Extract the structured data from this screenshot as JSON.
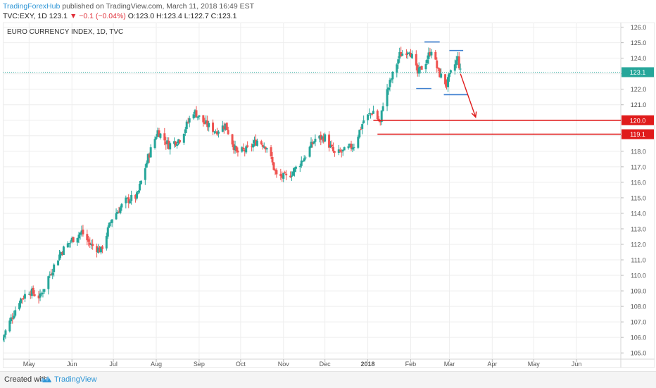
{
  "header": {
    "author": "TradingForexHub",
    "published": " published on TradingView.com, March 11, 2018 16:49 EST",
    "ohlc_prefix": "TVC:EXY, 1D 123.1 ",
    "ohlc_change": "▼ −0.1 (−0.04%)",
    "ohlc_values": " O:123.0 H:123.4 L:122.7 C:123.1"
  },
  "footer": {
    "created_with": "Created with",
    "brand": "TradingView"
  },
  "colors": {
    "up": "#26a69a",
    "down": "#ef5350",
    "grid": "#eeeeee",
    "lastLine": "#26a69a",
    "level": "#e01b1b",
    "pattern": "#3d7fcf"
  },
  "chart_data": {
    "type": "candlestick",
    "title": "EURO CURRENCY INDEX, 1D, TVC",
    "y_ticks": [
      "105.0",
      "106.0",
      "107.0",
      "108.0",
      "109.0",
      "110.0",
      "111.0",
      "112.0",
      "113.0",
      "114.0",
      "115.0",
      "116.0",
      "117.0",
      "118.0",
      "119.0",
      "120.0",
      "121.0",
      "122.0",
      "123.0",
      "124.0",
      "125.0",
      "126.0"
    ],
    "ylim": [
      104.6,
      126.3
    ],
    "x_ticks": [
      "May",
      "Jun",
      "Jul",
      "Aug",
      "Sep",
      "Oct",
      "Nov",
      "Dec",
      "2018",
      "Feb",
      "Mar",
      "Apr",
      "May",
      "Jun"
    ],
    "x_start": "2017-04-12",
    "x_end": "2018-07-03",
    "last_price": "123.1",
    "levels": [
      {
        "label": "120.0",
        "value": 120.0,
        "from": "2018-01-05"
      },
      {
        "label": "119.1",
        "value": 119.1,
        "from": "2018-01-08"
      }
    ],
    "pattern_lines": [
      {
        "value": 125.05,
        "from": "2018-02-11",
        "to": "2018-02-22"
      },
      {
        "value": 124.5,
        "from": "2018-03-01",
        "to": "2018-03-11"
      },
      {
        "value": 122.05,
        "from": "2018-02-05",
        "to": "2018-02-16"
      },
      {
        "value": 121.65,
        "from": "2018-02-25",
        "to": "2018-03-14"
      }
    ],
    "forecast_arrow": {
      "from_date": "2018-03-09",
      "from_value": 123.0,
      "to_date": "2018-03-20",
      "to_value": 120.2
    },
    "anchors": [
      [
        "2017-04-12",
        106.0
      ],
      [
        "2017-04-24",
        108.4
      ],
      [
        "2017-05-01",
        109.0
      ],
      [
        "2017-05-09",
        108.6
      ],
      [
        "2017-05-15",
        109.9
      ],
      [
        "2017-05-24",
        111.5
      ],
      [
        "2017-06-01",
        112.3
      ],
      [
        "2017-06-08",
        112.8
      ],
      [
        "2017-06-14",
        112.0
      ],
      [
        "2017-06-22",
        111.6
      ],
      [
        "2017-06-30",
        113.7
      ],
      [
        "2017-07-10",
        114.8
      ],
      [
        "2017-07-18",
        115.1
      ],
      [
        "2017-07-26",
        117.6
      ],
      [
        "2017-08-02",
        119.3
      ],
      [
        "2017-08-10",
        118.4
      ],
      [
        "2017-08-18",
        118.8
      ],
      [
        "2017-08-28",
        120.6
      ],
      [
        "2017-09-05",
        119.8
      ],
      [
        "2017-09-13",
        119.3
      ],
      [
        "2017-09-20",
        119.7
      ],
      [
        "2017-09-28",
        117.9
      ],
      [
        "2017-10-06",
        118.1
      ],
      [
        "2017-10-13",
        118.7
      ],
      [
        "2017-10-20",
        118.3
      ],
      [
        "2017-10-27",
        116.4
      ],
      [
        "2017-11-03",
        116.3
      ],
      [
        "2017-11-09",
        116.8
      ],
      [
        "2017-11-16",
        117.6
      ],
      [
        "2017-11-24",
        118.8
      ],
      [
        "2017-12-01",
        118.9
      ],
      [
        "2017-12-08",
        117.8
      ],
      [
        "2017-12-15",
        118.0
      ],
      [
        "2017-12-22",
        118.4
      ],
      [
        "2017-12-29",
        120.0
      ],
      [
        "2018-01-05",
        120.6
      ],
      [
        "2018-01-10",
        119.8
      ],
      [
        "2018-01-12",
        121.1
      ],
      [
        "2018-01-17",
        122.4
      ],
      [
        "2018-01-24",
        124.2
      ],
      [
        "2018-01-31",
        124.6
      ],
      [
        "2018-02-06",
        123.0
      ],
      [
        "2018-02-12",
        123.8
      ],
      [
        "2018-02-16",
        124.6
      ],
      [
        "2018-02-21",
        123.1
      ],
      [
        "2018-02-27",
        122.3
      ],
      [
        "2018-03-02",
        123.0
      ],
      [
        "2018-03-07",
        124.0
      ],
      [
        "2018-03-09",
        123.1
      ]
    ]
  }
}
